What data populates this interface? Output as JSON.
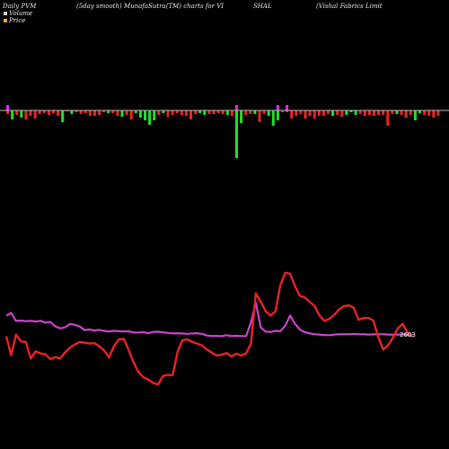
{
  "header": {
    "left": "Daily PVM",
    "center_left": "(5day smooth) MunafaSutra(TM) charts for VI",
    "center_right": "SHAL",
    "right": "(Vishal Fabrics Limit"
  },
  "legend": [
    {
      "label": "Volume",
      "color": "#d8d8d8"
    },
    {
      "label": "Price",
      "color": "#e9a73a"
    }
  ],
  "colors": {
    "background": "#000000",
    "volume_up": "#22e022",
    "volume_down": "#ee2222",
    "volume_marker": "#ee22ee",
    "price_line": "#ee2222",
    "ma_line": "#cc44cc",
    "baseline": "#bbbbbb"
  },
  "chart_data": {
    "type": "bar",
    "volume": {
      "values": [
        -4,
        -10,
        -5,
        -8,
        -10,
        -6,
        -9,
        -4,
        -3,
        -5,
        -3,
        -6,
        -13,
        -1,
        -4,
        -2,
        -4,
        -3,
        -6,
        -6,
        -5,
        -2,
        -3,
        -3,
        -6,
        -7,
        -5,
        -10,
        -3,
        -8,
        -11,
        -16,
        -11,
        -5,
        -3,
        -7,
        -5,
        -3,
        -5,
        -6,
        -10,
        -4,
        -3,
        -5,
        -4,
        -4,
        -3,
        -4,
        -5,
        -6,
        -53,
        -14,
        -5,
        -4,
        -4,
        -13,
        -4,
        -6,
        -17,
        -11,
        -2,
        -2,
        -9,
        -6,
        -4,
        -9,
        -6,
        -9,
        -6,
        -6,
        -4,
        -6,
        -5,
        -7,
        -5,
        -2,
        -5,
        -4,
        -6,
        -5,
        -6,
        -5,
        -5,
        -17,
        -4,
        -4,
        -5,
        -8,
        -5,
        -11,
        -3,
        -5,
        -6,
        -8,
        -6
      ],
      "up": [
        false,
        true,
        false,
        true,
        false,
        false,
        false,
        false,
        false,
        false,
        false,
        false,
        true,
        false,
        true,
        false,
        false,
        false,
        false,
        false,
        false,
        false,
        true,
        false,
        false,
        true,
        false,
        false,
        true,
        true,
        true,
        true,
        true,
        false,
        true,
        false,
        false,
        false,
        false,
        false,
        false,
        false,
        true,
        true,
        false,
        false,
        false,
        false,
        true,
        false,
        true,
        true,
        false,
        false,
        true,
        false,
        false,
        true,
        true,
        true,
        false,
        false,
        false,
        false,
        false,
        false,
        false,
        false,
        false,
        false,
        false,
        true,
        false,
        false,
        true,
        true,
        true,
        false,
        false,
        false,
        false,
        false,
        false,
        false,
        false,
        true,
        false,
        false,
        false,
        true,
        true,
        false,
        false,
        false,
        false
      ],
      "markers": [
        0,
        50,
        59,
        61
      ]
    },
    "price": [
      25.8,
      14.8,
      26.8,
      22.8,
      22.4,
      12.8,
      17.0,
      15.8,
      15.2,
      12.4,
      13.6,
      12.8,
      16.3,
      19.2,
      21.0,
      22.5,
      22.0,
      21.5,
      21.8,
      20.0,
      17.5,
      13.5,
      20.0,
      24.0,
      24.3,
      17.8,
      10.5,
      4.8,
      1.8,
      0.5,
      -1.5,
      -2.5,
      2.5,
      3.2,
      3.0,
      16.8,
      23.5,
      24.0,
      22.5,
      21.5,
      20.5,
      18.0,
      16.2,
      14.5,
      15.0,
      16.0,
      14.0,
      15.6,
      14.5,
      15.8,
      21.5,
      51.0,
      46.0,
      40.5,
      38.0,
      40.5,
      55.8,
      63.0,
      62.5,
      55.0,
      49.5,
      48.5,
      46.0,
      43.5,
      38.0,
      34.8,
      36.0,
      38.3,
      41.5,
      43.5,
      44.0,
      42.5,
      35.5,
      36.5,
      36.5,
      35.0,
      25.5,
      18.0,
      20.5,
      25.0,
      30.5,
      33.0,
      28.0,
      25.5
    ],
    "ma": [
      37.8,
      39.5,
      34.8,
      35.0,
      34.6,
      34.9,
      34.4,
      34.9,
      33.8,
      34.2,
      31.6,
      30.4,
      31.0,
      33.0,
      32.5,
      31.6,
      29.4,
      29.8,
      29.2,
      29.6,
      29.0,
      28.6,
      29.0,
      28.8,
      28.6,
      28.8,
      28.0,
      28.0,
      28.2,
      27.6,
      28.3,
      28.5,
      28.1,
      27.8,
      27.5,
      27.6,
      27.4,
      27.2,
      27.5,
      27.6,
      27.2,
      26.2,
      26.0,
      26.0,
      25.9,
      26.4,
      25.9,
      26.1,
      25.9,
      25.9,
      34.0,
      45.5,
      31.0,
      28.5,
      28.3,
      29.0,
      28.8,
      32.0,
      38.0,
      33.0,
      29.8,
      28.2,
      27.5,
      27.0,
      26.8,
      26.5,
      26.4,
      26.8,
      27.0,
      27.0,
      27.0,
      27.2,
      27.0,
      27.0,
      26.8,
      26.9,
      27.0,
      27.0,
      26.8,
      26.8,
      26.8,
      26.9,
      26.5,
      26.4
    ],
    "last_price_label": "2603",
    "baseline": 0
  }
}
